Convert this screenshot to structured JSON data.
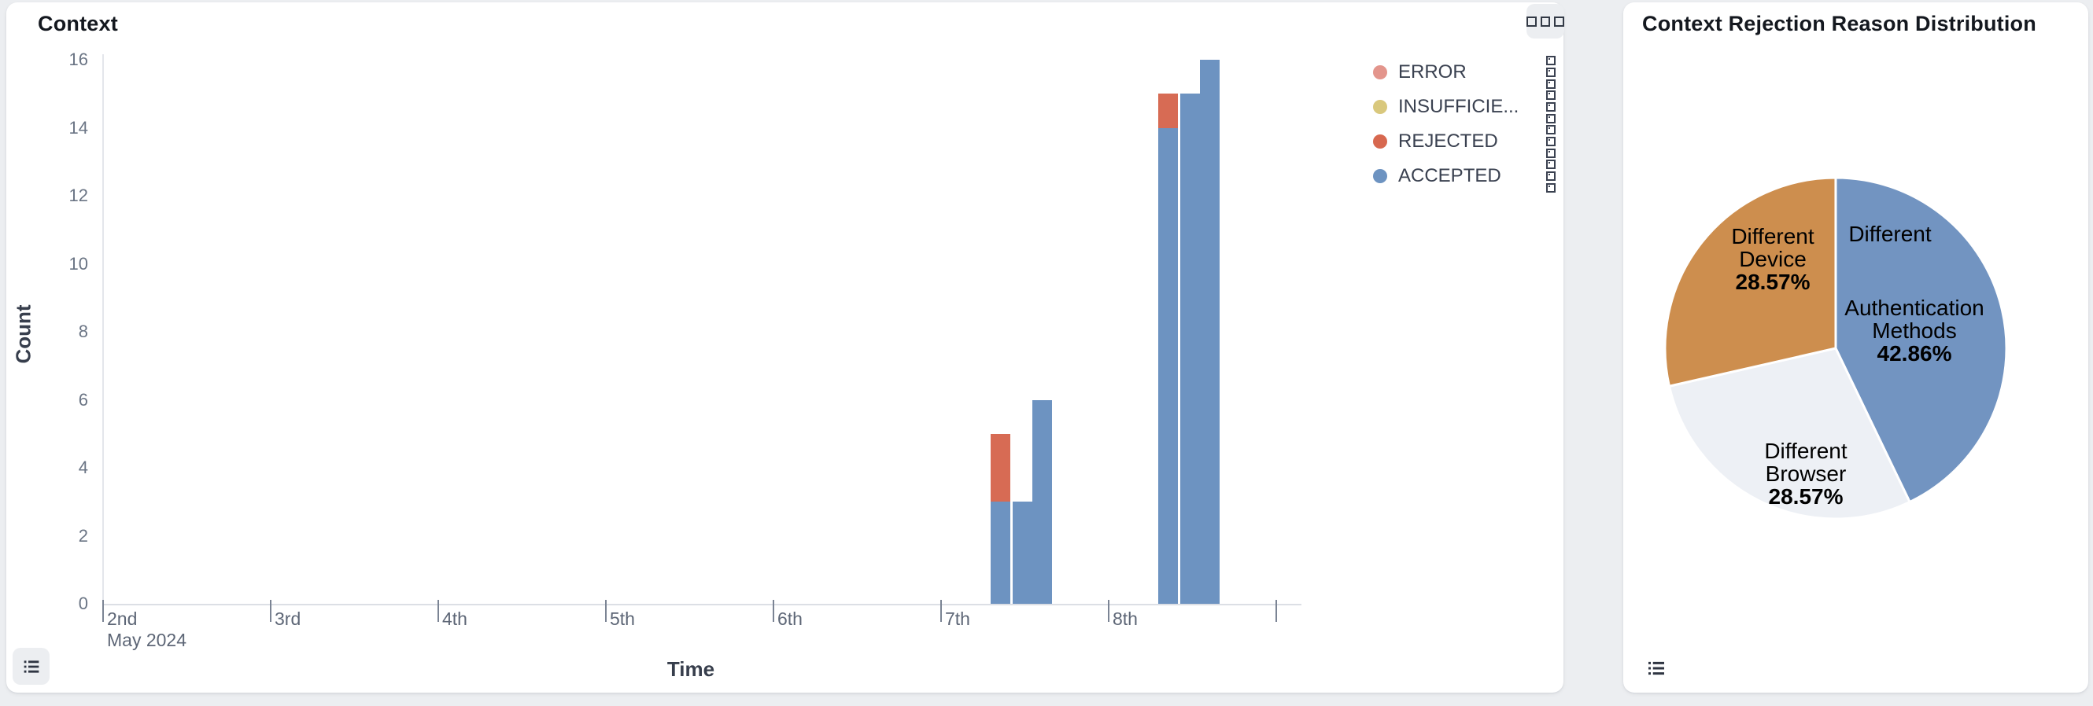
{
  "colors": {
    "page_background": "#eceef1",
    "panel_background": "#ffffff",
    "bar_accepted": "#6d93c1",
    "bar_rejected": "#d76b54",
    "pie_blue": "#7294c1",
    "pie_gray": "#edf0f5",
    "pie_orange": "#cd8e4e"
  },
  "icons": {
    "panel_menu": "three-squares-handle-icon",
    "legend_handle": "drag-handle-squares-icon",
    "data_view": "list-icon"
  },
  "left_panel": {
    "title": "Context",
    "y_axis_title": "Count",
    "x_axis_title": "Time",
    "legend": [
      {
        "label": "ERROR",
        "color": "#e3958c"
      },
      {
        "label": "INSUFFICIE...",
        "color": "#d9c87d"
      },
      {
        "label": "REJECTED",
        "color": "#d7684f"
      },
      {
        "label": "ACCEPTED",
        "color": "#6d93c1"
      }
    ]
  },
  "right_panel": {
    "title": "Context Rejection Reason Distribution",
    "labels": {
      "device": {
        "l1": "Different",
        "l2": "Device",
        "pct": "28.57%"
      },
      "auth_top": {
        "l1": "Different"
      },
      "auth": {
        "l1": "Authentication",
        "l2": "Methods",
        "pct": "42.86%"
      },
      "browser": {
        "l1": "Different",
        "l2": "Browser",
        "pct": "28.57%"
      }
    }
  },
  "chart_data": [
    {
      "type": "bar",
      "stacked": true,
      "title": "Context",
      "xlabel": "Time",
      "ylabel": "Count",
      "ylim": [
        0,
        16
      ],
      "yticks": [
        0,
        2,
        4,
        6,
        8,
        10,
        12,
        14,
        16
      ],
      "x_ticks": [
        {
          "label": "2nd",
          "sub": "May 2024"
        },
        {
          "label": "3rd"
        },
        {
          "label": "4th"
        },
        {
          "label": "5th"
        },
        {
          "label": "6th"
        },
        {
          "label": "7th"
        },
        {
          "label": "8th"
        },
        {
          "label": ""
        }
      ],
      "series_colors": {
        "ERROR": "#e3958c",
        "INSUFFICIENT": "#d9c87d",
        "REJECTED": "#d76b54",
        "ACCEPTED": "#6d93c1"
      },
      "bars": [
        {
          "x_days": 5.36,
          "ACCEPTED": 3,
          "REJECTED": 2
        },
        {
          "x_days": 5.49,
          "ACCEPTED": 3
        },
        {
          "x_days": 5.61,
          "ACCEPTED": 6
        },
        {
          "x_days": 6.36,
          "ACCEPTED": 14,
          "REJECTED": 1
        },
        {
          "x_days": 6.49,
          "ACCEPTED": 15
        },
        {
          "x_days": 6.61,
          "ACCEPTED": 16
        }
      ],
      "legend_entries": [
        "ERROR",
        "INSUFFICIE...",
        "REJECTED",
        "ACCEPTED"
      ],
      "grid": false,
      "legend_position": "top-right"
    },
    {
      "type": "pie",
      "title": "Context Rejection Reason Distribution",
      "slices": [
        {
          "label": "Different Authentication Methods",
          "value": 42.86,
          "color": "#7294c1"
        },
        {
          "label": "Different Browser",
          "value": 28.57,
          "color": "#edf0f5"
        },
        {
          "label": "Different Device",
          "value": 28.57,
          "color": "#cd8e4e"
        }
      ],
      "start_angle_deg": 0,
      "direction": "clockwise",
      "labels_inside": true
    }
  ]
}
